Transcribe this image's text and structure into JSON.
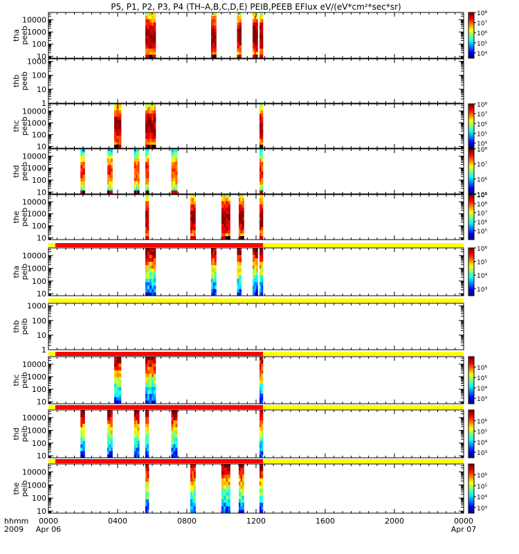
{
  "title": "P5, P1, P2, P3, P4 (TH–A,B,C,D,E) PEIB,PEEB EFlux eV/(eV*cm²*sec*sr)",
  "chart_data": {
    "type": "heatmap",
    "x_axis": {
      "label_line1": "hhmm",
      "label_line2": "2009",
      "range_hours": [
        0,
        24
      ],
      "ticks": [
        {
          "hour": 0,
          "label": "0000",
          "sublabel": "Apr 06"
        },
        {
          "hour": 4,
          "label": "0400",
          "sublabel": ""
        },
        {
          "hour": 8,
          "label": "0800",
          "sublabel": ""
        },
        {
          "hour": 12,
          "label": "1200",
          "sublabel": ""
        },
        {
          "hour": 16,
          "label": "1600",
          "sublabel": ""
        },
        {
          "hour": 20,
          "label": "2000",
          "sublabel": ""
        },
        {
          "hour": 24,
          "label": "0000",
          "sublabel": "Apr 07"
        }
      ]
    },
    "panels": [
      {
        "probe": "tha",
        "product": "peeb",
        "yrange": [
          7,
          40000
        ],
        "yticks": [
          10,
          100,
          1000,
          10000
        ],
        "colorbar": {
          "range": [
            3000,
            100000000
          ],
          "ticks": [
            {
              "v": 10000,
              "t": "10⁴"
            },
            {
              "v": 100000,
              "t": "10⁵"
            },
            {
              "v": 1000000,
              "t": "10⁶"
            },
            {
              "v": 10000000,
              "t": "10⁷"
            },
            {
              "v": 100000000,
              "t": "10⁸"
            }
          ]
        },
        "bursts": [
          [
            5.6,
            6.2
          ],
          [
            9.4,
            9.7
          ],
          [
            10.9,
            11.15
          ],
          [
            11.8,
            12.1
          ],
          [
            12.2,
            12.4
          ]
        ],
        "level": "high"
      },
      {
        "probe": "thb",
        "product": "peeb",
        "yrange": [
          1,
          1500
        ],
        "yticks": [
          1,
          10,
          100,
          1000
        ],
        "colorbar": null,
        "bursts": [],
        "level": "none"
      },
      {
        "probe": "thc",
        "product": "peeb",
        "yrange": [
          7,
          40000
        ],
        "yticks": [
          10,
          100,
          1000,
          10000
        ],
        "colorbar": {
          "range": [
            3000,
            100000000
          ],
          "ticks": [
            {
              "v": 10000,
              "t": "10⁴"
            },
            {
              "v": 100000,
              "t": "10⁵"
            },
            {
              "v": 1000000,
              "t": "10⁶"
            },
            {
              "v": 10000000,
              "t": "10⁷"
            },
            {
              "v": 100000000,
              "t": "10⁸"
            }
          ]
        },
        "bursts": [
          [
            3.8,
            4.2
          ],
          [
            5.6,
            6.2
          ],
          [
            12.2,
            12.4
          ]
        ],
        "level": "high"
      },
      {
        "probe": "thd",
        "product": "peeb",
        "yrange": [
          7,
          40000
        ],
        "yticks": [
          10,
          100,
          1000,
          10000
        ],
        "colorbar": {
          "range": [
            100000,
            100000000
          ],
          "ticks": [
            {
              "v": 100000,
              "t": "10⁵"
            },
            {
              "v": 1000000,
              "t": "10⁶"
            },
            {
              "v": 10000000,
              "t": "10⁷"
            },
            {
              "v": 100000000,
              "t": "10⁸"
            }
          ]
        },
        "bursts": [
          [
            1.85,
            2.1
          ],
          [
            3.4,
            3.7
          ],
          [
            4.95,
            5.25
          ],
          [
            5.6,
            5.8
          ],
          [
            7.1,
            7.45
          ],
          [
            12.2,
            12.4
          ]
        ],
        "level": "med"
      },
      {
        "probe": "the",
        "product": "peeb",
        "yrange": [
          7,
          40000
        ],
        "yticks": [
          10,
          100,
          1000,
          10000
        ],
        "colorbar": {
          "range": [
            10000,
            1000000000
          ],
          "ticks": [
            {
              "v": 100000,
              "t": "10⁵"
            },
            {
              "v": 1000000,
              "t": "10⁶"
            },
            {
              "v": 10000000,
              "t": "10⁷"
            },
            {
              "v": 100000000,
              "t": "10⁸"
            },
            {
              "v": 1000000000,
              "t": "10⁹"
            }
          ]
        },
        "bursts": [
          [
            5.6,
            5.8
          ],
          [
            8.2,
            8.5
          ],
          [
            10.0,
            10.5
          ],
          [
            11.0,
            11.3
          ],
          [
            12.2,
            12.4
          ]
        ],
        "level": "high"
      },
      {
        "probe": "tha",
        "product": "peib",
        "yrange": [
          7,
          40000
        ],
        "yticks": [
          10,
          100,
          1000,
          10000
        ],
        "colorbar": {
          "range": [
            300,
            1000000
          ],
          "ticks": [
            {
              "v": 1000,
              "t": "10³"
            },
            {
              "v": 10000,
              "t": "10⁴"
            },
            {
              "v": 100000,
              "t": "10⁵"
            },
            {
              "v": 1000000,
              "t": "10⁶"
            }
          ]
        },
        "bursts": [
          [
            5.6,
            6.2
          ],
          [
            9.4,
            9.7
          ],
          [
            10.9,
            11.15
          ],
          [
            11.8,
            12.1
          ],
          [
            12.2,
            12.4
          ]
        ],
        "level": "ion",
        "bar": {
          "red_until": 12.4
        }
      },
      {
        "probe": "thb",
        "product": "peib",
        "yrange": [
          1,
          1500
        ],
        "yticks": [
          1,
          10,
          100,
          1000
        ],
        "colorbar": null,
        "bursts": [],
        "level": "none",
        "bar": {
          "red_until": 0
        }
      },
      {
        "probe": "thc",
        "product": "peib",
        "yrange": [
          7,
          40000
        ],
        "yticks": [
          10,
          100,
          1000,
          10000
        ],
        "colorbar": {
          "range": [
            300,
            10000000
          ],
          "ticks": [
            {
              "v": 1000,
              "t": "10³"
            },
            {
              "v": 10000,
              "t": "10⁴"
            },
            {
              "v": 100000,
              "t": "10⁵"
            },
            {
              "v": 1000000,
              "t": "10⁶"
            }
          ]
        },
        "bursts": [
          [
            3.8,
            4.2
          ],
          [
            5.6,
            6.2
          ],
          [
            12.2,
            12.4
          ]
        ],
        "level": "ion",
        "bar": {
          "red_until": 12.4
        }
      },
      {
        "probe": "thd",
        "product": "peib",
        "yrange": [
          7,
          40000
        ],
        "yticks": [
          10,
          100,
          1000,
          10000
        ],
        "colorbar": {
          "range": [
            300,
            10000000
          ],
          "ticks": [
            {
              "v": 1000,
              "t": "10³"
            },
            {
              "v": 10000,
              "t": "10⁴"
            },
            {
              "v": 100000,
              "t": "10⁵"
            },
            {
              "v": 1000000,
              "t": "10⁶"
            }
          ]
        },
        "bursts": [
          [
            1.85,
            2.1
          ],
          [
            3.4,
            3.7
          ],
          [
            4.95,
            5.25
          ],
          [
            5.6,
            5.8
          ],
          [
            7.1,
            7.45
          ],
          [
            12.2,
            12.4
          ]
        ],
        "level": "ion",
        "bar": {
          "red_until": 12.4
        }
      },
      {
        "probe": "the",
        "product": "peib",
        "yrange": [
          7,
          40000
        ],
        "yticks": [
          10,
          100,
          1000,
          10000
        ],
        "colorbar": {
          "range": [
            300,
            10000000
          ],
          "ticks": [
            {
              "v": 1000,
              "t": "10³"
            },
            {
              "v": 10000,
              "t": "10⁴"
            },
            {
              "v": 100000,
              "t": "10⁵"
            },
            {
              "v": 1000000,
              "t": "10⁶"
            }
          ]
        },
        "bursts": [
          [
            5.6,
            5.8
          ],
          [
            8.2,
            8.5
          ],
          [
            10.0,
            10.5
          ],
          [
            11.0,
            11.3
          ],
          [
            12.2,
            12.4
          ]
        ],
        "level": "ion",
        "bar": {
          "red_until": 12.4
        }
      }
    ],
    "bar_colors": {
      "flagged": "#ff0000",
      "nominal": "#ffff00"
    },
    "grid": false
  }
}
